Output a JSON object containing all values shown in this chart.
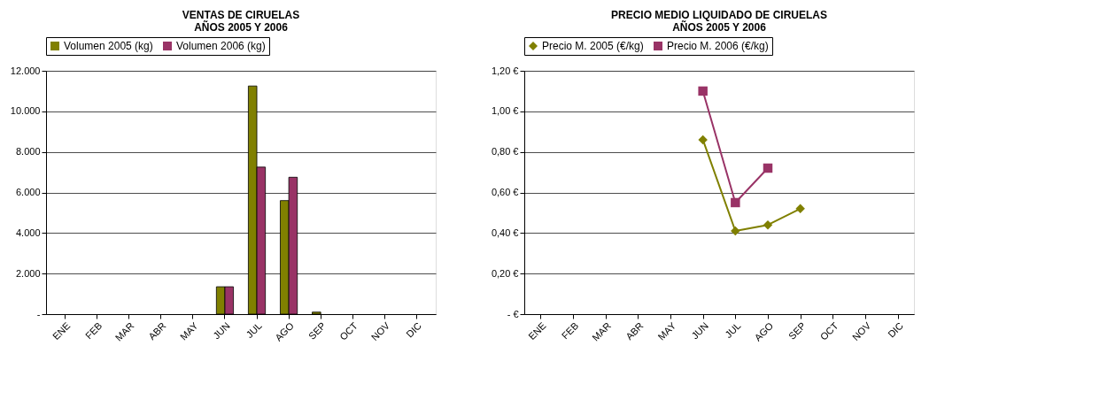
{
  "chart_data": [
    {
      "type": "bar",
      "title": "VENTAS DE CIRUELAS\nAÑOS 2005 Y 2006",
      "categories": [
        "ENE",
        "FEB",
        "MAR",
        "ABR",
        "MAY",
        "JUN",
        "JUL",
        "AGO",
        "SEP",
        "OCT",
        "NOV",
        "DIC"
      ],
      "series": [
        {
          "name": "Volumen 2005 (kg)",
          "color": "#808000",
          "values": [
            null,
            null,
            null,
            null,
            null,
            1350,
            11250,
            5600,
            100,
            null,
            null,
            null
          ]
        },
        {
          "name": "Volumen 2006 (kg)",
          "color": "#993366",
          "values": [
            null,
            null,
            null,
            null,
            null,
            1350,
            7250,
            6750,
            null,
            null,
            null,
            null
          ]
        }
      ],
      "ylim": [
        0,
        12000
      ],
      "yticks": [
        {
          "value": 0,
          "label": "-"
        },
        {
          "value": 2000,
          "label": "2.000"
        },
        {
          "value": 4000,
          "label": "4.000"
        },
        {
          "value": 6000,
          "label": "6.000"
        },
        {
          "value": 8000,
          "label": "8.000"
        },
        {
          "value": 10000,
          "label": "10.000"
        },
        {
          "value": 12000,
          "label": "12.000"
        }
      ],
      "grid": "y",
      "legend": "top"
    },
    {
      "type": "line",
      "title": "PRECIO MEDIO LIQUIDADO DE CIRUELAS\nAÑOS 2005 Y 2006",
      "categories": [
        "ENE",
        "FEB",
        "MAR",
        "ABR",
        "MAY",
        "JUN",
        "JUL",
        "AGO",
        "SEP",
        "OCT",
        "NOV",
        "DIC"
      ],
      "series": [
        {
          "name": "Precio M. 2005 (€/kg)",
          "color": "#808000",
          "marker": "diamond",
          "values": [
            null,
            null,
            null,
            null,
            null,
            0.86,
            0.41,
            0.44,
            0.52,
            null,
            null,
            null
          ]
        },
        {
          "name": "Precio M. 2006 (€/kg)",
          "color": "#993366",
          "marker": "square",
          "values": [
            null,
            null,
            null,
            null,
            null,
            1.1,
            0.55,
            0.72,
            null,
            null,
            null,
            null
          ]
        }
      ],
      "ylim": [
        0,
        1.2
      ],
      "yticks": [
        {
          "value": 0,
          "label": "-   €"
        },
        {
          "value": 0.2,
          "label": "0,20 €"
        },
        {
          "value": 0.4,
          "label": "0,40 €"
        },
        {
          "value": 0.6,
          "label": "0,60 €"
        },
        {
          "value": 0.8,
          "label": "0,80 €"
        },
        {
          "value": 1.0,
          "label": "1,00 €"
        },
        {
          "value": 1.2,
          "label": "1,20 €"
        }
      ],
      "grid": "y",
      "legend": "top",
      "line_style": "solid"
    }
  ]
}
